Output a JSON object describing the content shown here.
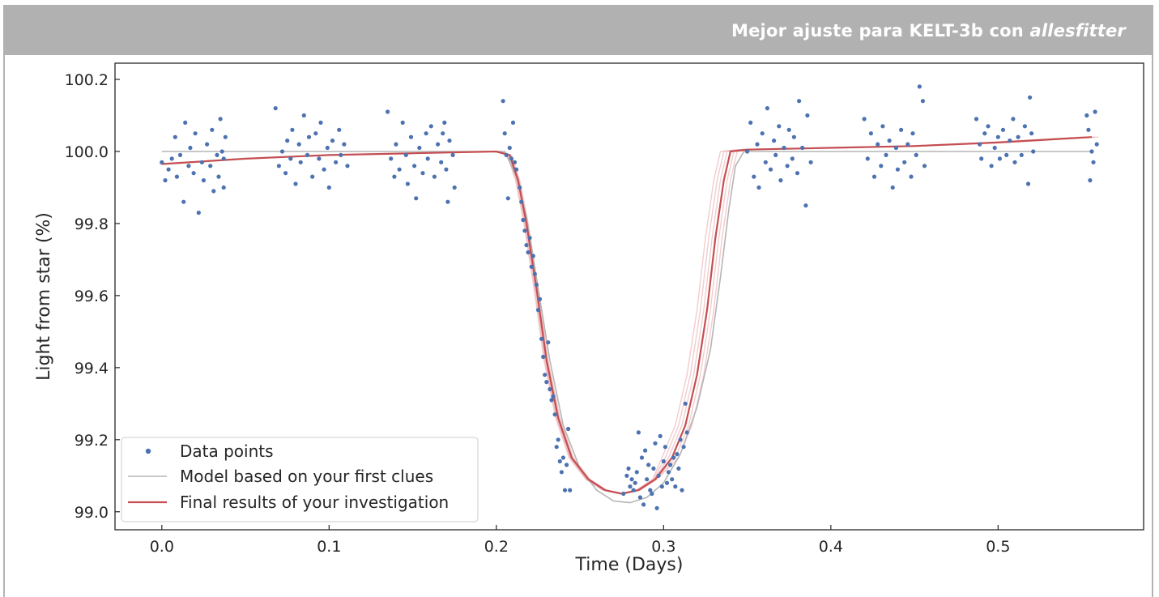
{
  "banner": {
    "title_plain": "Mejor ajuste para KELT-3b con ",
    "title_italic": "allesfitter"
  },
  "colors": {
    "banner_bg": "#b1b1b1",
    "data_points": "#4c72b0",
    "model_first_clues": "#b5b5b5",
    "final_results": "#c44e52",
    "final_results_samples": "#e8a3a5"
  },
  "chart_data": {
    "type": "scatter",
    "xlabel": "Time (Days)",
    "ylabel": "Light from star (%)",
    "xlim": [
      -0.028,
      0.587
    ],
    "ylim": [
      98.95,
      100.245
    ],
    "x_ticks": [
      0.0,
      0.1,
      0.2,
      0.3,
      0.4,
      0.5
    ],
    "x_tick_labels": [
      "0.0",
      "0.1",
      "0.2",
      "0.3",
      "0.4",
      "0.5"
    ],
    "y_ticks": [
      99.0,
      99.2,
      99.4,
      99.6,
      99.8,
      100.0,
      100.2
    ],
    "y_tick_labels": [
      "99.0",
      "99.2",
      "99.4",
      "99.6",
      "99.8",
      "100.0",
      "100.2"
    ],
    "grid": false,
    "legend_position": "bottom-left",
    "legend": [
      {
        "label": "Data points",
        "kind": "marker"
      },
      {
        "label": "Model based on your first clues",
        "kind": "line"
      },
      {
        "label": "Final results of your investigation",
        "kind": "line"
      }
    ],
    "series": [
      {
        "name": "Model based on your first clues",
        "kind": "line",
        "points": [
          [
            0.0,
            100.0
          ],
          [
            0.205,
            100.0
          ],
          [
            0.212,
            99.93
          ],
          [
            0.218,
            99.82
          ],
          [
            0.225,
            99.62
          ],
          [
            0.232,
            99.42
          ],
          [
            0.24,
            99.24
          ],
          [
            0.25,
            99.12
          ],
          [
            0.26,
            99.06
          ],
          [
            0.27,
            99.03
          ],
          [
            0.28,
            99.025
          ],
          [
            0.29,
            99.04
          ],
          [
            0.3,
            99.08
          ],
          [
            0.31,
            99.16
          ],
          [
            0.32,
            99.29
          ],
          [
            0.328,
            99.45
          ],
          [
            0.334,
            99.65
          ],
          [
            0.339,
            99.84
          ],
          [
            0.343,
            99.96
          ],
          [
            0.348,
            100.0
          ],
          [
            0.556,
            100.0
          ]
        ]
      },
      {
        "name": "Final results of your investigation",
        "kind": "line",
        "points": [
          [
            0.0,
            99.965
          ],
          [
            0.05,
            99.98
          ],
          [
            0.1,
            99.99
          ],
          [
            0.15,
            99.995
          ],
          [
            0.2,
            100.0
          ],
          [
            0.208,
            99.99
          ],
          [
            0.213,
            99.92
          ],
          [
            0.218,
            99.8
          ],
          [
            0.224,
            99.62
          ],
          [
            0.23,
            99.42
          ],
          [
            0.237,
            99.26
          ],
          [
            0.245,
            99.15
          ],
          [
            0.255,
            99.09
          ],
          [
            0.265,
            99.06
          ],
          [
            0.275,
            99.05
          ],
          [
            0.285,
            99.06
          ],
          [
            0.295,
            99.09
          ],
          [
            0.305,
            99.15
          ],
          [
            0.313,
            99.24
          ],
          [
            0.32,
            99.38
          ],
          [
            0.326,
            99.56
          ],
          [
            0.331,
            99.76
          ],
          [
            0.336,
            99.92
          ],
          [
            0.34,
            100.0
          ],
          [
            0.35,
            100.005
          ],
          [
            0.4,
            100.01
          ],
          [
            0.45,
            100.015
          ],
          [
            0.5,
            100.025
          ],
          [
            0.556,
            100.04
          ]
        ]
      },
      {
        "name": "Data points",
        "kind": "scatter",
        "points": [
          [
            0.0,
            99.97
          ],
          [
            0.002,
            99.92
          ],
          [
            0.004,
            99.95
          ],
          [
            0.006,
            99.98
          ],
          [
            0.008,
            100.04
          ],
          [
            0.009,
            99.93
          ],
          [
            0.011,
            99.99
          ],
          [
            0.013,
            99.86
          ],
          [
            0.014,
            100.08
          ],
          [
            0.016,
            99.96
          ],
          [
            0.017,
            100.01
          ],
          [
            0.019,
            99.94
          ],
          [
            0.02,
            100.05
          ],
          [
            0.022,
            99.83
          ],
          [
            0.024,
            99.97
          ],
          [
            0.025,
            99.92
          ],
          [
            0.027,
            100.02
          ],
          [
            0.029,
            99.96
          ],
          [
            0.03,
            100.06
          ],
          [
            0.031,
            99.89
          ],
          [
            0.033,
            99.99
          ],
          [
            0.034,
            99.93
          ],
          [
            0.035,
            100.09
          ],
          [
            0.037,
            99.98
          ],
          [
            0.038,
            100.04
          ],
          [
            0.037,
            99.9
          ],
          [
            0.036,
            100.0
          ],
          [
            0.068,
            100.12
          ],
          [
            0.07,
            99.96
          ],
          [
            0.072,
            100.0
          ],
          [
            0.074,
            99.94
          ],
          [
            0.075,
            100.03
          ],
          [
            0.077,
            99.98
          ],
          [
            0.078,
            100.06
          ],
          [
            0.08,
            99.91
          ],
          [
            0.082,
            100.02
          ],
          [
            0.083,
            99.97
          ],
          [
            0.085,
            100.1
          ],
          [
            0.087,
            99.99
          ],
          [
            0.088,
            100.04
          ],
          [
            0.09,
            99.93
          ],
          [
            0.092,
            100.05
          ],
          [
            0.094,
            99.98
          ],
          [
            0.095,
            100.08
          ],
          [
            0.097,
            99.95
          ],
          [
            0.099,
            100.01
          ],
          [
            0.1,
            99.9
          ],
          [
            0.102,
            100.03
          ],
          [
            0.104,
            99.97
          ],
          [
            0.106,
            100.06
          ],
          [
            0.107,
            99.99
          ],
          [
            0.109,
            100.02
          ],
          [
            0.111,
            99.96
          ],
          [
            0.135,
            100.11
          ],
          [
            0.137,
            99.98
          ],
          [
            0.139,
            99.93
          ],
          [
            0.14,
            100.02
          ],
          [
            0.142,
            99.95
          ],
          [
            0.144,
            100.08
          ],
          [
            0.146,
            99.99
          ],
          [
            0.147,
            99.91
          ],
          [
            0.149,
            100.04
          ],
          [
            0.151,
            99.96
          ],
          [
            0.152,
            99.87
          ],
          [
            0.154,
            100.01
          ],
          [
            0.156,
            99.94
          ],
          [
            0.158,
            100.05
          ],
          [
            0.159,
            99.98
          ],
          [
            0.161,
            100.07
          ],
          [
            0.163,
            99.93
          ],
          [
            0.165,
            100.02
          ],
          [
            0.167,
            99.97
          ],
          [
            0.169,
            100.08
          ],
          [
            0.17,
            99.95
          ],
          [
            0.172,
            100.03
          ],
          [
            0.174,
            99.99
          ],
          [
            0.175,
            99.9
          ],
          [
            0.171,
            99.86
          ],
          [
            0.168,
            100.05
          ],
          [
            0.204,
            100.14
          ],
          [
            0.205,
            100.05
          ],
          [
            0.206,
            99.99
          ],
          [
            0.207,
            99.87
          ],
          [
            0.208,
            100.01
          ],
          [
            0.209,
            99.98
          ],
          [
            0.21,
            100.08
          ],
          [
            0.211,
            99.97
          ],
          [
            0.212,
            99.95
          ],
          [
            0.214,
            99.9
          ],
          [
            0.215,
            99.86
          ],
          [
            0.216,
            99.81
          ],
          [
            0.217,
            99.78
          ],
          [
            0.218,
            99.74
          ],
          [
            0.219,
            99.72
          ],
          [
            0.22,
            99.76
          ],
          [
            0.221,
            99.68
          ],
          [
            0.222,
            99.71
          ],
          [
            0.223,
            99.66
          ],
          [
            0.224,
            99.63
          ],
          [
            0.225,
            99.56
          ],
          [
            0.226,
            99.59
          ],
          [
            0.227,
            99.48
          ],
          [
            0.228,
            99.43
          ],
          [
            0.229,
            99.38
          ],
          [
            0.23,
            99.36
          ],
          [
            0.231,
            99.47
          ],
          [
            0.232,
            99.34
          ],
          [
            0.233,
            99.31
          ],
          [
            0.234,
            99.32
          ],
          [
            0.235,
            99.27
          ],
          [
            0.236,
            99.18
          ],
          [
            0.237,
            99.2
          ],
          [
            0.238,
            99.14
          ],
          [
            0.239,
            99.11
          ],
          [
            0.24,
            99.15
          ],
          [
            0.241,
            99.06
          ],
          [
            0.242,
            99.13
          ],
          [
            0.243,
            99.23
          ],
          [
            0.244,
            99.06
          ],
          [
            0.276,
            99.05
          ],
          [
            0.278,
            99.1
          ],
          [
            0.279,
            99.12
          ],
          [
            0.28,
            99.07
          ],
          [
            0.281,
            99.09
          ],
          [
            0.282,
            99.06
          ],
          [
            0.283,
            99.08
          ],
          [
            0.284,
            99.11
          ],
          [
            0.285,
            99.22
          ],
          [
            0.286,
            99.04
          ],
          [
            0.287,
            99.15
          ],
          [
            0.288,
            99.02
          ],
          [
            0.289,
            99.17
          ],
          [
            0.29,
            99.09
          ],
          [
            0.291,
            99.13
          ],
          [
            0.292,
            99.06
          ],
          [
            0.293,
            99.05
          ],
          [
            0.294,
            99.12
          ],
          [
            0.295,
            99.19
          ],
          [
            0.296,
            99.01
          ],
          [
            0.297,
            99.1
          ],
          [
            0.298,
            99.21
          ],
          [
            0.299,
            99.07
          ],
          [
            0.3,
            99.14
          ],
          [
            0.301,
            99.18
          ],
          [
            0.302,
            99.08
          ],
          [
            0.303,
            99.11
          ],
          [
            0.304,
            99.13
          ],
          [
            0.305,
            99.09
          ],
          [
            0.306,
            99.15
          ],
          [
            0.307,
            99.07
          ],
          [
            0.308,
            99.16
          ],
          [
            0.309,
            99.12
          ],
          [
            0.31,
            99.2
          ],
          [
            0.311,
            99.06
          ],
          [
            0.312,
            99.18
          ],
          [
            0.313,
            99.3
          ],
          [
            0.314,
            99.22
          ],
          [
            0.35,
            100.0
          ],
          [
            0.352,
            100.08
          ],
          [
            0.354,
            99.93
          ],
          [
            0.356,
            100.02
          ],
          [
            0.357,
            99.9
          ],
          [
            0.359,
            100.05
          ],
          [
            0.361,
            99.97
          ],
          [
            0.362,
            100.12
          ],
          [
            0.364,
            99.95
          ],
          [
            0.366,
            100.03
          ],
          [
            0.367,
            99.99
          ],
          [
            0.369,
            100.07
          ],
          [
            0.37,
            99.92
          ],
          [
            0.372,
            100.01
          ],
          [
            0.374,
            99.96
          ],
          [
            0.375,
            100.06
          ],
          [
            0.377,
            99.98
          ],
          [
            0.378,
            100.04
          ],
          [
            0.38,
            99.94
          ],
          [
            0.381,
            100.14
          ],
          [
            0.383,
            100.01
          ],
          [
            0.385,
            99.85
          ],
          [
            0.386,
            100.1
          ],
          [
            0.388,
            99.97
          ],
          [
            0.42,
            100.09
          ],
          [
            0.422,
            99.98
          ],
          [
            0.424,
            100.05
          ],
          [
            0.426,
            99.93
          ],
          [
            0.428,
            100.02
          ],
          [
            0.43,
            99.96
          ],
          [
            0.431,
            100.07
          ],
          [
            0.433,
            99.99
          ],
          [
            0.435,
            100.03
          ],
          [
            0.437,
            99.9
          ],
          [
            0.439,
            100.01
          ],
          [
            0.44,
            99.95
          ],
          [
            0.442,
            100.06
          ],
          [
            0.444,
            99.97
          ],
          [
            0.446,
            100.02
          ],
          [
            0.448,
            99.93
          ],
          [
            0.449,
            100.05
          ],
          [
            0.451,
            99.99
          ],
          [
            0.453,
            100.18
          ],
          [
            0.455,
            100.14
          ],
          [
            0.456,
            99.96
          ],
          [
            0.487,
            100.09
          ],
          [
            0.489,
            100.02
          ],
          [
            0.49,
            99.98
          ],
          [
            0.492,
            100.05
          ],
          [
            0.494,
            100.07
          ],
          [
            0.496,
            99.96
          ],
          [
            0.498,
            100.01
          ],
          [
            0.5,
            100.04
          ],
          [
            0.501,
            99.98
          ],
          [
            0.503,
            100.06
          ],
          [
            0.505,
            99.99
          ],
          [
            0.507,
            100.03
          ],
          [
            0.509,
            100.09
          ],
          [
            0.51,
            99.97
          ],
          [
            0.512,
            100.04
          ],
          [
            0.514,
            99.99
          ],
          [
            0.516,
            100.07
          ],
          [
            0.518,
            99.91
          ],
          [
            0.519,
            100.15
          ],
          [
            0.521,
            100.0
          ],
          [
            0.52,
            100.05
          ],
          [
            0.553,
            100.1
          ],
          [
            0.554,
            100.06
          ],
          [
            0.555,
            99.92
          ],
          [
            0.556,
            100.0
          ],
          [
            0.557,
            99.97
          ],
          [
            0.558,
            100.11
          ],
          [
            0.559,
            100.02
          ]
        ]
      }
    ]
  }
}
